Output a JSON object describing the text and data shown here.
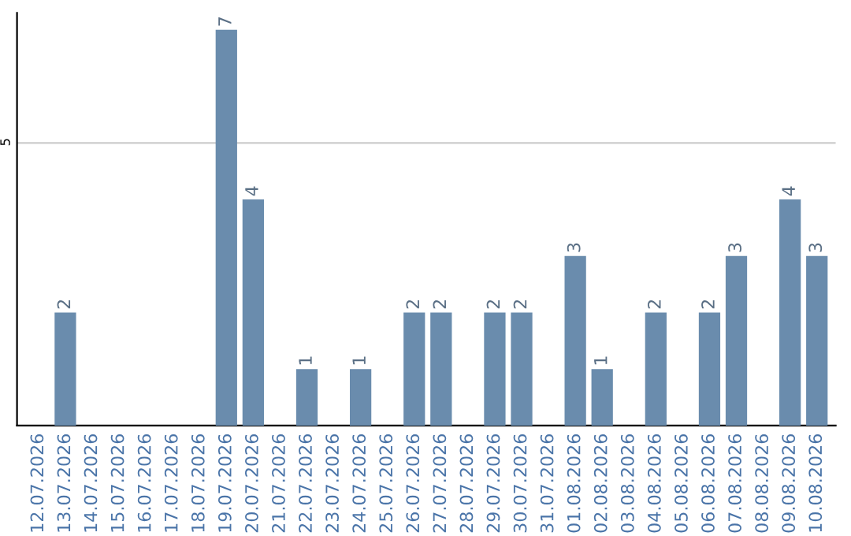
{
  "chart_data": {
    "type": "bar",
    "categories": [
      "12.07.2026",
      "13.07.2026",
      "14.07.2026",
      "15.07.2026",
      "16.07.2026",
      "17.07.2026",
      "18.07.2026",
      "19.07.2026",
      "20.07.2026",
      "21.07.2026",
      "22.07.2026",
      "23.07.2026",
      "24.07.2026",
      "25.07.2026",
      "26.07.2026",
      "27.07.2026",
      "28.07.2026",
      "29.07.2026",
      "30.07.2026",
      "31.07.2026",
      "01.08.2026",
      "02.08.2026",
      "03.08.2026",
      "04.08.2026",
      "05.08.2026",
      "06.08.2026",
      "07.08.2026",
      "08.08.2026",
      "09.08.2026",
      "10.08.2026"
    ],
    "values": [
      0,
      2,
      0,
      0,
      0,
      0,
      0,
      7,
      4,
      0,
      1,
      0,
      1,
      0,
      2,
      2,
      0,
      2,
      2,
      0,
      3,
      1,
      0,
      2,
      0,
      2,
      3,
      0,
      4,
      3
    ],
    "value_labels": [
      null,
      "2",
      null,
      null,
      null,
      null,
      null,
      "7",
      "4",
      null,
      "1",
      null,
      "1",
      null,
      "2",
      "2",
      null,
      "2",
      "2",
      null,
      "3",
      "1",
      null,
      "2",
      null,
      "2",
      "3",
      null,
      "4",
      "3"
    ],
    "color": "#6a8cad",
    "ylim": [
      0,
      7.3
    ],
    "yticks": [
      5
    ],
    "grid": "y"
  }
}
